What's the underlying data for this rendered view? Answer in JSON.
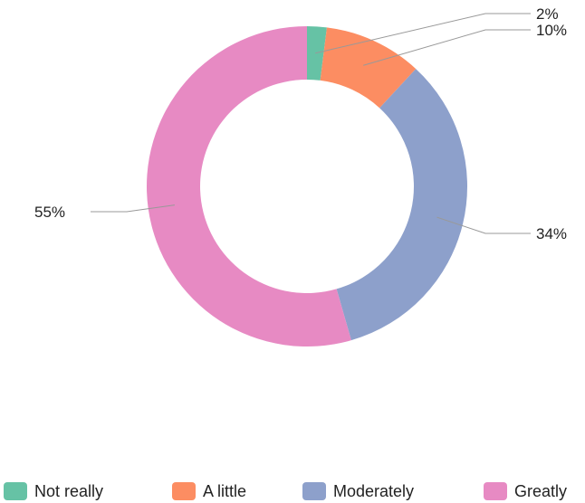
{
  "chart_data": {
    "type": "pie",
    "variant": "donut",
    "categories": [
      "Not really",
      "A little",
      "Moderately",
      "Greatly"
    ],
    "values": [
      2,
      10,
      34,
      55
    ],
    "labels": [
      "2%",
      "10%",
      "34%",
      "55%"
    ],
    "colors": [
      "#66c2a5",
      "#fc8d62",
      "#8da0cb",
      "#e78ac3"
    ],
    "legend_position": "bottom"
  }
}
